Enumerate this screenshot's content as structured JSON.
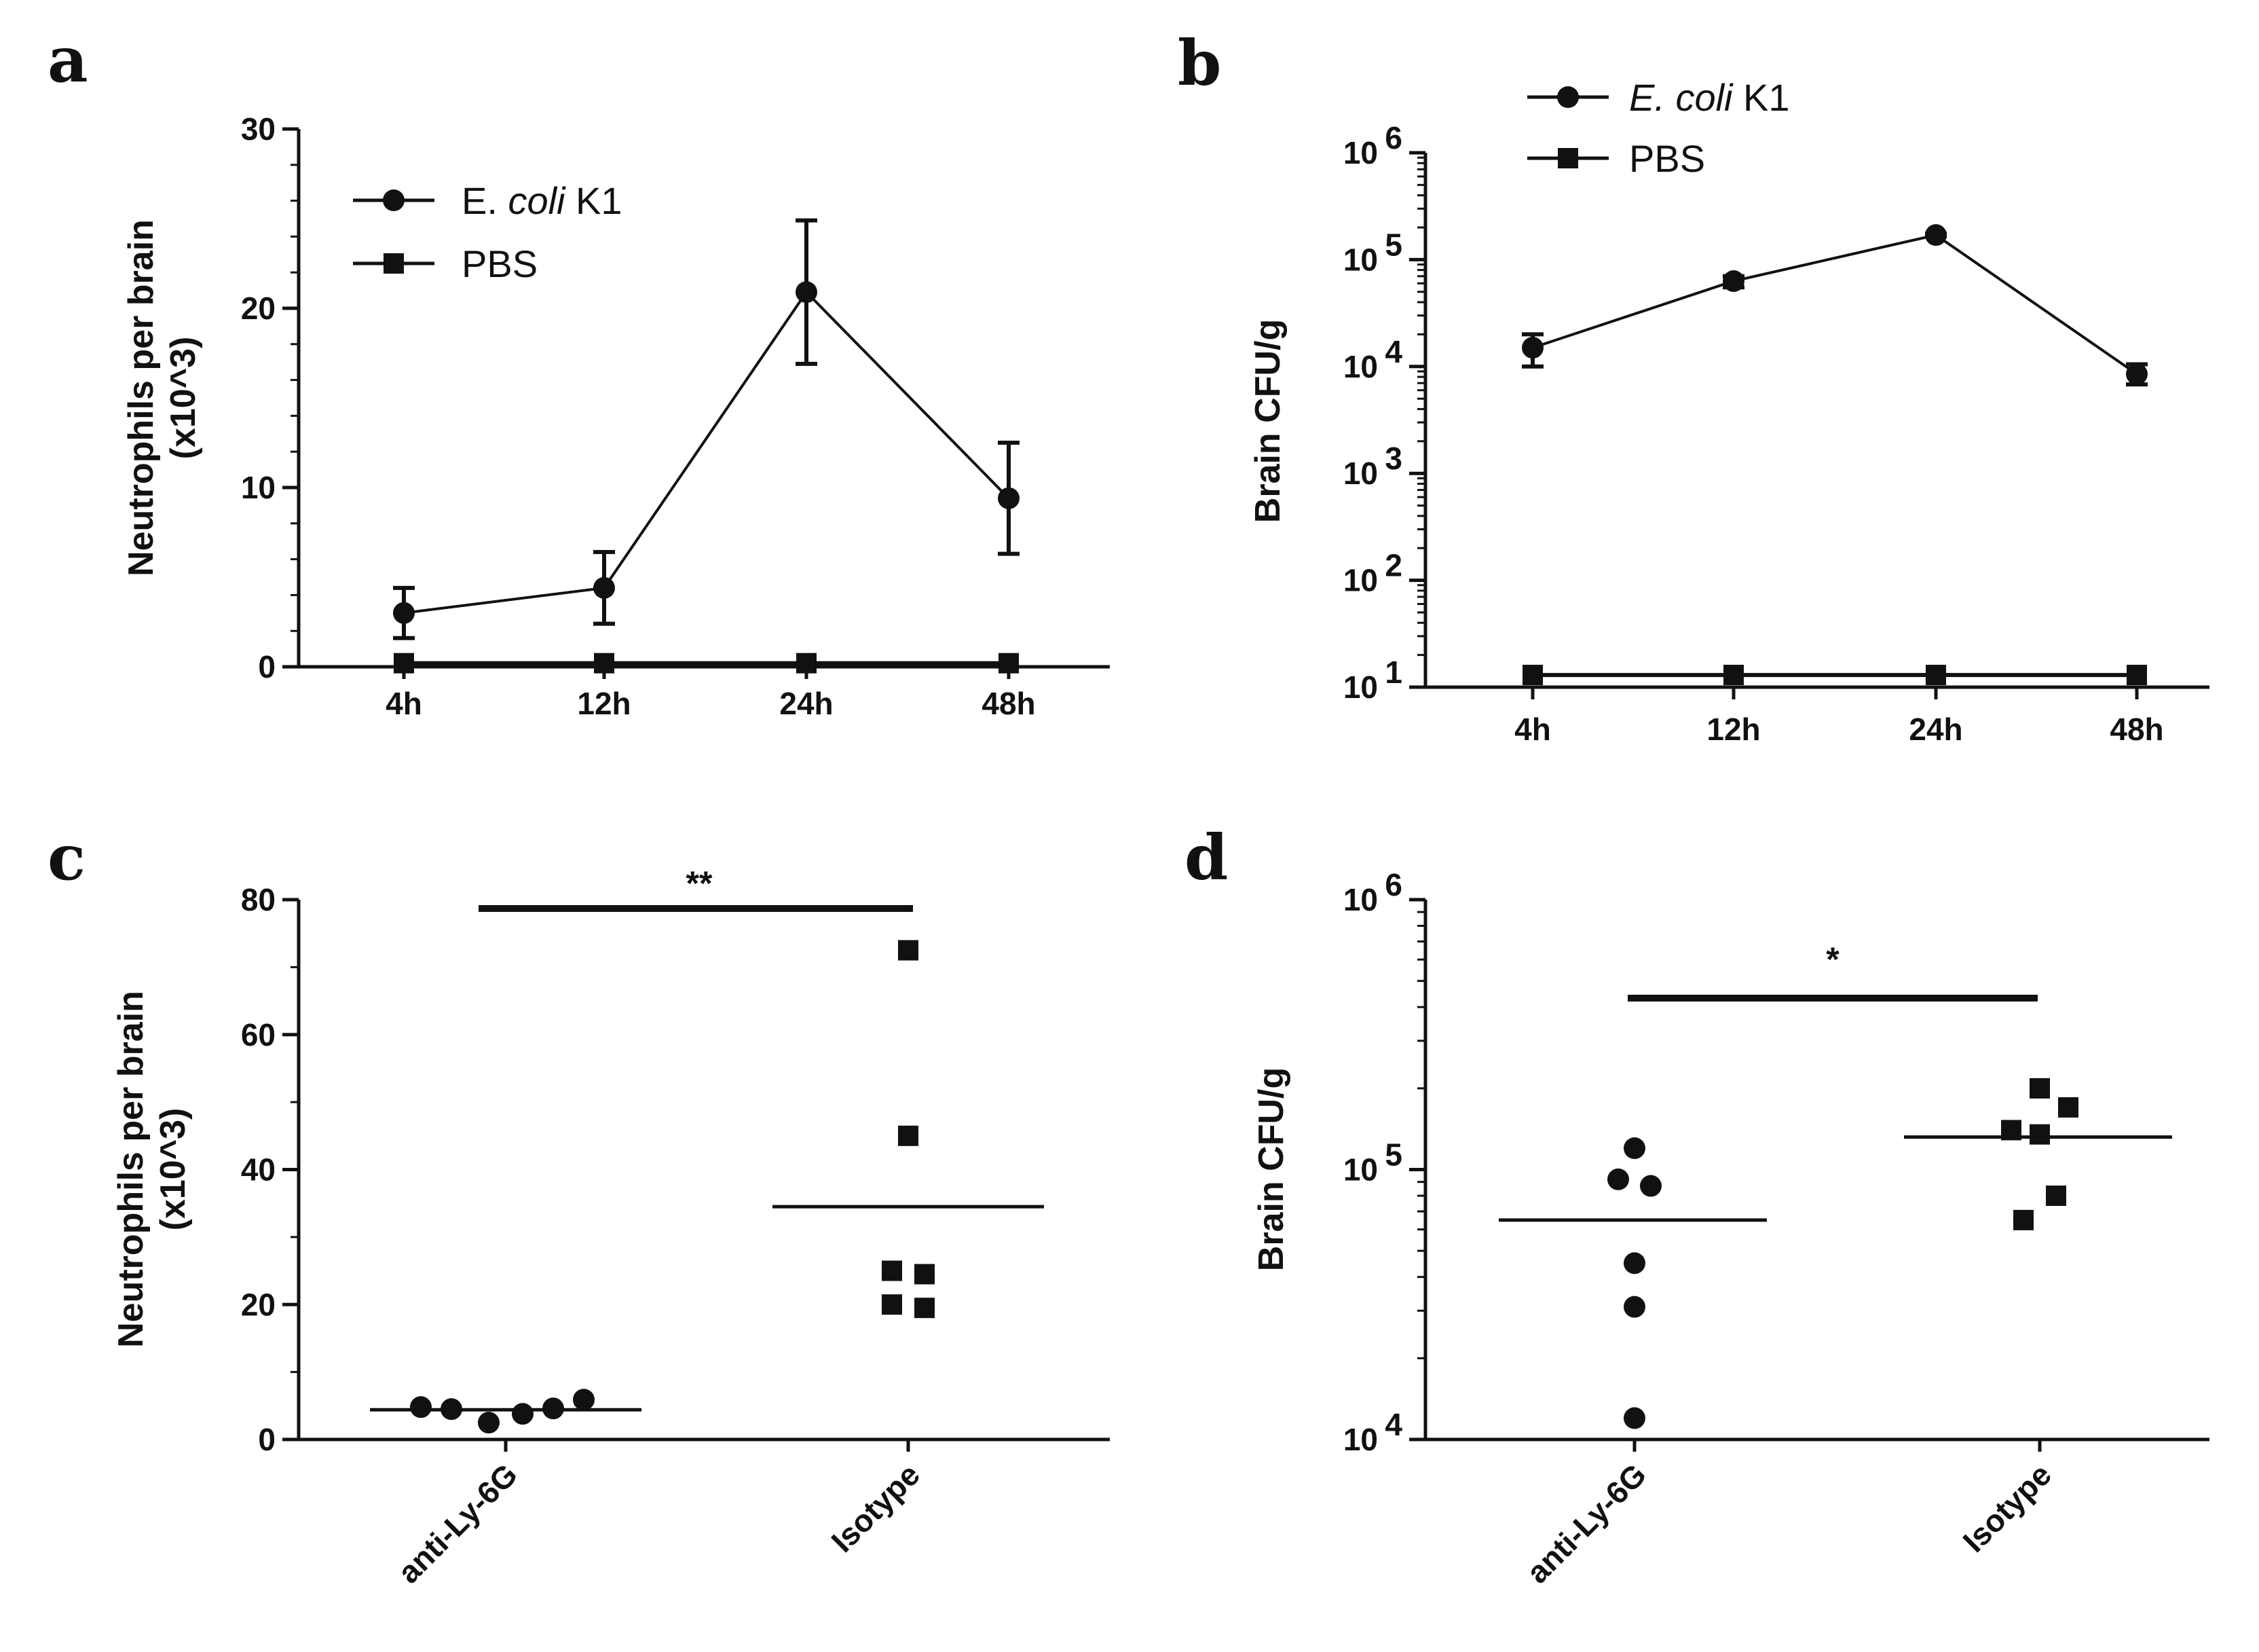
{
  "chart_data": [
    {
      "panel": "a",
      "type": "line",
      "ylabel_line1": "Neutrophils per brain",
      "ylabel_line2": "(x10^3)",
      "categories": [
        "4h",
        "12h",
        "24h",
        "48h"
      ],
      "yticks": [
        "0",
        "10",
        "20",
        "30"
      ],
      "ylim": [
        0,
        30
      ],
      "series": [
        {
          "name": "E. coli K1",
          "name_plain": "E. ",
          "name_italic": "coli",
          "name_suffix": " K1",
          "marker": "circle",
          "values": [
            3,
            4.4,
            20.9,
            9.4
          ],
          "err": [
            1.4,
            2.0,
            4.0,
            3.1
          ]
        },
        {
          "name": "PBS",
          "marker": "square",
          "values": [
            0.2,
            0.2,
            0.2,
            0.2
          ],
          "err": [
            0,
            0,
            0,
            0
          ]
        }
      ]
    },
    {
      "panel": "b",
      "type": "line",
      "yscale": "log",
      "ylabel": "Brain CFU/g",
      "categories": [
        "4h",
        "12h",
        "24h",
        "48h"
      ],
      "ytick_base": "10",
      "ytick_exps": [
        "1",
        "2",
        "3",
        "4",
        "5",
        "6"
      ],
      "ylim": [
        10,
        1000000
      ],
      "series": [
        {
          "name": "E. coli K1",
          "name_plain": "",
          "name_italic": "E. coli",
          "name_suffix": " K1",
          "marker": "circle",
          "values": [
            15000,
            63000,
            170000,
            8500
          ],
          "err_lo": [
            10000,
            55000,
            165000,
            6800
          ],
          "err_hi": [
            20000,
            70000,
            175000,
            10500
          ]
        },
        {
          "name": "PBS",
          "marker": "square",
          "values": [
            13,
            13,
            13,
            13
          ]
        }
      ]
    },
    {
      "panel": "c",
      "type": "scatter",
      "ylabel_line1": "Neutrophils per brain",
      "ylabel_line2": "(x10^3)",
      "categories": [
        "anti-Ly-6G",
        "Isotype"
      ],
      "yticks": [
        "0",
        "20",
        "40",
        "60",
        "80"
      ],
      "ylim": [
        0,
        80
      ],
      "significance": "**",
      "groups": [
        {
          "name": "anti-Ly-6G",
          "marker": "circle",
          "values": [
            4.8,
            4.5,
            2.5,
            3.8,
            4.6,
            5.9
          ],
          "mean": 4.4
        },
        {
          "name": "Isotype",
          "marker": "square",
          "values": [
            72.5,
            45,
            25,
            24.5,
            20,
            19.5
          ],
          "mean": 34.5
        }
      ]
    },
    {
      "panel": "d",
      "type": "scatter",
      "yscale": "log",
      "ylabel": "Brain CFU/g",
      "categories": [
        "anti-Ly-6G",
        "Isotype"
      ],
      "ytick_base": "10",
      "ytick_exps": [
        "4",
        "5",
        "6"
      ],
      "ylim": [
        10000,
        1000000
      ],
      "significance": "*",
      "groups": [
        {
          "name": "anti-Ly-6G",
          "marker": "circle",
          "values": [
            120000,
            92000,
            87000,
            45000,
            31000,
            12000
          ],
          "mean": 65000
        },
        {
          "name": "Isotype",
          "marker": "square",
          "values": [
            200000,
            170000,
            140000,
            135000,
            80000,
            65000
          ],
          "mean": 132000
        }
      ]
    }
  ]
}
